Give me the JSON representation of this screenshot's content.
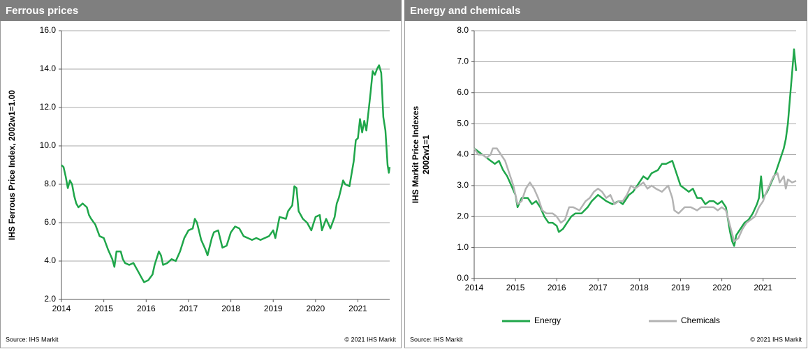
{
  "chart_data": [
    {
      "type": "line",
      "title": "Ferrous prices",
      "ylabel": "IHS Ferrous Price Index, 2002w1=1.00",
      "source": "Source: IHS Markit",
      "copyright": "© 2021  IHS Markit",
      "color": "#1fa64a",
      "grid": true,
      "xlim": [
        2014,
        2021.75
      ],
      "xticks": [
        2014,
        2015,
        2016,
        2017,
        2018,
        2019,
        2020,
        2021
      ],
      "ylim": [
        2,
        16
      ],
      "yticks": [
        {
          "value": 2,
          "label": "2.0"
        },
        {
          "value": 4,
          "label": "4.0"
        },
        {
          "value": 6,
          "label": "6.0"
        },
        {
          "value": 8,
          "label": "8.0"
        },
        {
          "value": 10,
          "label": "10.0"
        },
        {
          "value": 12,
          "label": "12.0"
        },
        {
          "value": 14,
          "label": "14.0"
        },
        {
          "value": 16,
          "label": "16.0"
        }
      ],
      "x": [
        2014.0,
        2014.05,
        2014.1,
        2014.15,
        2014.2,
        2014.25,
        2014.3,
        2014.35,
        2014.4,
        2014.5,
        2014.6,
        2014.65,
        2014.7,
        2014.8,
        2014.9,
        2015.0,
        2015.1,
        2015.2,
        2015.25,
        2015.3,
        2015.4,
        2015.45,
        2015.5,
        2015.6,
        2015.7,
        2015.8,
        2015.9,
        2015.95,
        2016.05,
        2016.15,
        2016.2,
        2016.3,
        2016.35,
        2016.4,
        2016.5,
        2016.6,
        2016.7,
        2016.8,
        2016.9,
        2017.0,
        2017.1,
        2017.15,
        2017.2,
        2017.3,
        2017.4,
        2017.45,
        2017.55,
        2017.6,
        2017.7,
        2017.8,
        2017.9,
        2018.0,
        2018.1,
        2018.2,
        2018.3,
        2018.4,
        2018.5,
        2018.6,
        2018.7,
        2018.8,
        2018.9,
        2019.0,
        2019.05,
        2019.15,
        2019.3,
        2019.35,
        2019.45,
        2019.5,
        2019.55,
        2019.6,
        2019.7,
        2019.8,
        2019.9,
        2020.0,
        2020.1,
        2020.15,
        2020.25,
        2020.35,
        2020.45,
        2020.5,
        2020.55,
        2020.65,
        2020.7,
        2020.8,
        2020.9,
        2020.95,
        2021.0,
        2021.05,
        2021.1,
        2021.15,
        2021.2,
        2021.25,
        2021.3,
        2021.35,
        2021.4,
        2021.45,
        2021.5,
        2021.55,
        2021.6,
        2021.65,
        2021.7,
        2021.73,
        2021.75
      ],
      "values": [
        9.0,
        8.9,
        8.4,
        7.8,
        8.2,
        8.0,
        7.4,
        7.0,
        6.8,
        7.0,
        6.8,
        6.4,
        6.2,
        5.9,
        5.3,
        5.2,
        4.6,
        4.1,
        3.7,
        4.5,
        4.5,
        4.1,
        3.9,
        3.8,
        3.9,
        3.5,
        3.1,
        2.9,
        3.0,
        3.3,
        3.8,
        4.5,
        4.3,
        3.8,
        3.9,
        4.1,
        4.0,
        4.5,
        5.2,
        5.6,
        5.7,
        6.2,
        6.0,
        5.1,
        4.6,
        4.3,
        5.2,
        5.5,
        5.6,
        4.7,
        4.8,
        5.5,
        5.8,
        5.7,
        5.3,
        5.2,
        5.1,
        5.2,
        5.1,
        5.2,
        5.3,
        5.6,
        5.2,
        6.3,
        6.2,
        6.6,
        6.9,
        7.9,
        7.8,
        6.6,
        6.2,
        6.0,
        5.6,
        6.3,
        6.4,
        5.6,
        6.2,
        5.7,
        6.3,
        7.0,
        7.3,
        8.2,
        8.0,
        7.9,
        9.2,
        10.3,
        10.4,
        11.4,
        10.7,
        11.3,
        10.8,
        11.8,
        12.8,
        13.9,
        13.7,
        14.0,
        14.2,
        13.8,
        11.5,
        10.8,
        9.0,
        8.6,
        8.9
      ]
    },
    {
      "type": "line",
      "title": "Energy and chemicals",
      "ylabel": "IHS Markit Price Indexes",
      "ylabel2": "2002w1=1",
      "source": "Source: IHS Markit",
      "copyright": "© 2021  IHS Markit",
      "grid": true,
      "legend": "bottom",
      "xlim": [
        2014,
        2021.8
      ],
      "xticks": [
        2014,
        2015,
        2016,
        2017,
        2018,
        2019,
        2020,
        2021
      ],
      "ylim": [
        0,
        8
      ],
      "yticks": [
        {
          "value": 0,
          "label": "0.0"
        },
        {
          "value": 1,
          "label": "1.0"
        },
        {
          "value": 2,
          "label": "2.0"
        },
        {
          "value": 3,
          "label": "3.0"
        },
        {
          "value": 4,
          "label": "4.0"
        },
        {
          "value": 5,
          "label": "5.0"
        },
        {
          "value": 6,
          "label": "6.0"
        },
        {
          "value": 7,
          "label": "7.0"
        },
        {
          "value": 8,
          "label": "8.0"
        }
      ],
      "series": [
        {
          "name": "Energy",
          "color": "#1fa64a",
          "x": [
            2014.0,
            2014.1,
            2014.2,
            2014.3,
            2014.4,
            2014.5,
            2014.6,
            2014.7,
            2014.8,
            2014.9,
            2015.0,
            2015.05,
            2015.15,
            2015.3,
            2015.4,
            2015.5,
            2015.6,
            2015.7,
            2015.8,
            2015.9,
            2016.0,
            2016.05,
            2016.15,
            2016.25,
            2016.35,
            2016.45,
            2016.6,
            2016.75,
            2016.85,
            2017.0,
            2017.1,
            2017.2,
            2017.35,
            2017.5,
            2017.6,
            2017.75,
            2017.85,
            2018.0,
            2018.1,
            2018.2,
            2018.3,
            2018.45,
            2018.55,
            2018.65,
            2018.8,
            2018.9,
            2019.0,
            2019.1,
            2019.2,
            2019.3,
            2019.4,
            2019.5,
            2019.6,
            2019.7,
            2019.8,
            2019.9,
            2020.0,
            2020.1,
            2020.2,
            2020.25,
            2020.3,
            2020.35,
            2020.45,
            2020.55,
            2020.65,
            2020.75,
            2020.85,
            2020.9,
            2020.95,
            2021.0,
            2021.1,
            2021.2,
            2021.3,
            2021.4,
            2021.5,
            2021.55,
            2021.6,
            2021.65,
            2021.7,
            2021.75,
            2021.8
          ],
          "values": [
            4.2,
            4.1,
            4.0,
            3.9,
            3.8,
            3.7,
            3.8,
            3.5,
            3.3,
            3.0,
            2.7,
            2.3,
            2.6,
            2.6,
            2.4,
            2.5,
            2.3,
            2.0,
            1.8,
            1.8,
            1.7,
            1.5,
            1.6,
            1.8,
            2.0,
            2.1,
            2.1,
            2.3,
            2.5,
            2.7,
            2.6,
            2.5,
            2.4,
            2.5,
            2.4,
            2.7,
            2.8,
            3.1,
            3.3,
            3.2,
            3.4,
            3.5,
            3.7,
            3.7,
            3.8,
            3.4,
            3.0,
            2.9,
            2.8,
            2.9,
            2.6,
            2.6,
            2.4,
            2.5,
            2.5,
            2.4,
            2.5,
            2.3,
            1.5,
            1.2,
            1.05,
            1.4,
            1.6,
            1.8,
            1.9,
            2.1,
            2.4,
            2.6,
            3.3,
            2.6,
            2.8,
            3.1,
            3.4,
            3.8,
            4.2,
            4.5,
            5.0,
            5.8,
            6.6,
            7.4,
            6.7
          ]
        },
        {
          "name": "Chemicals",
          "color": "#b3b3b3",
          "x": [
            2014.0,
            2014.1,
            2014.2,
            2014.3,
            2014.4,
            2014.45,
            2014.55,
            2014.65,
            2014.75,
            2014.85,
            2014.95,
            2015.05,
            2015.15,
            2015.25,
            2015.35,
            2015.45,
            2015.55,
            2015.65,
            2015.75,
            2015.9,
            2016.0,
            2016.1,
            2016.2,
            2016.3,
            2016.4,
            2016.55,
            2016.7,
            2016.8,
            2016.9,
            2017.0,
            2017.1,
            2017.2,
            2017.3,
            2017.4,
            2017.5,
            2017.6,
            2017.7,
            2017.8,
            2017.9,
            2018.0,
            2018.1,
            2018.2,
            2018.3,
            2018.4,
            2018.55,
            2018.7,
            2018.8,
            2018.85,
            2018.95,
            2019.1,
            2019.25,
            2019.4,
            2019.5,
            2019.65,
            2019.8,
            2019.9,
            2020.0,
            2020.1,
            2020.2,
            2020.3,
            2020.4,
            2020.5,
            2020.6,
            2020.7,
            2020.8,
            2020.9,
            2021.0,
            2021.05,
            2021.15,
            2021.25,
            2021.35,
            2021.4,
            2021.5,
            2021.55,
            2021.6,
            2021.7,
            2021.8
          ],
          "values": [
            4.2,
            4.0,
            4.0,
            3.9,
            4.0,
            4.2,
            4.2,
            4.0,
            3.8,
            3.4,
            3.0,
            2.4,
            2.5,
            2.9,
            3.1,
            2.9,
            2.6,
            2.2,
            2.1,
            2.1,
            2.0,
            1.8,
            1.9,
            2.3,
            2.3,
            2.2,
            2.5,
            2.6,
            2.8,
            2.9,
            2.8,
            2.6,
            2.7,
            2.4,
            2.5,
            2.5,
            2.7,
            3.0,
            2.9,
            3.0,
            3.1,
            2.9,
            3.0,
            2.9,
            2.8,
            3.0,
            2.6,
            2.2,
            2.1,
            2.3,
            2.3,
            2.2,
            2.3,
            2.3,
            2.3,
            2.2,
            2.3,
            2.2,
            1.7,
            1.2,
            1.3,
            1.6,
            1.8,
            1.9,
            2.0,
            2.3,
            2.5,
            2.7,
            3.0,
            3.3,
            3.4,
            3.1,
            3.3,
            2.9,
            3.2,
            3.1,
            3.15
          ]
        }
      ]
    }
  ]
}
